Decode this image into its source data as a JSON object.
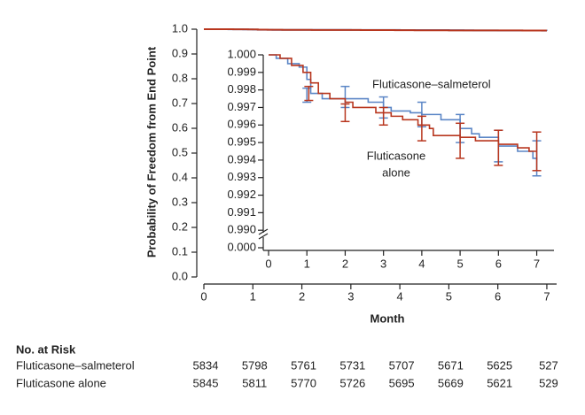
{
  "chart_data": {
    "type": "step",
    "ylabel": "Probability of Freedom from End Point",
    "xlabel": "Month",
    "xlim": [
      0,
      7.2
    ],
    "xticks": [
      0,
      1,
      2,
      3,
      4,
      5,
      6,
      7
    ],
    "ylim": [
      0,
      1
    ],
    "yticks": [
      {
        "value": 0,
        "label": "0.0"
      },
      0.1,
      0.2,
      0.3,
      0.4,
      0.5,
      0.6,
      0.7,
      0.8,
      0.9,
      {
        "value": 1,
        "label": "1.0"
      }
    ],
    "inset": {
      "xlim": [
        0,
        7.45
      ],
      "xticks": [
        0,
        1,
        2,
        3,
        4,
        5,
        6,
        7
      ],
      "ylim": [
        0.989,
        1.0
      ],
      "axis_break": true,
      "yticks": [
        {
          "value": 1.0,
          "label": "1.000"
        },
        {
          "value": 0.999,
          "label": "0.999"
        },
        {
          "value": 0.998,
          "label": "0.998"
        },
        {
          "value": 0.997,
          "label": "0.997"
        },
        {
          "value": 0.996,
          "label": "0.996"
        },
        {
          "value": 0.995,
          "label": "0.995"
        },
        {
          "value": 0.994,
          "label": "0.994"
        },
        {
          "value": 0.993,
          "label": "0.993"
        },
        {
          "value": 0.992,
          "label": "0.992"
        },
        {
          "value": 0.991,
          "label": "0.991"
        },
        {
          "value": 0.99,
          "label": "0.990"
        },
        {
          "value": 0,
          "label": "0.000"
        }
      ]
    },
    "annotations": [
      "Fluticasone–salmeterol",
      "Fluticasone",
      "alone"
    ],
    "series": [
      {
        "name": "Fluticasone–salmeterol",
        "color": "#5b86c6",
        "x": [
          0,
          0.2,
          0.5,
          0.8,
          1.0,
          1.1,
          1.4,
          2.0,
          2.6,
          3.0,
          3.2,
          3.7,
          4.0,
          4.5,
          5.0,
          5.3,
          5.5,
          6.0,
          6.5,
          6.9,
          7.0
        ],
        "values": [
          1.0,
          0.9998,
          0.9995,
          0.9993,
          0.9986,
          0.9978,
          0.9975,
          0.9975,
          0.9973,
          0.997,
          0.9968,
          0.9967,
          0.9966,
          0.9963,
          0.9958,
          0.9955,
          0.9953,
          0.9948,
          0.9945,
          0.9941,
          0.994
        ],
        "error_bars": {
          "x": [
            1.0,
            2.0,
            3.0,
            4.0,
            5.0,
            6.0,
            7.0
          ],
          "values": [
            0.9977,
            0.9976,
            0.997,
            0.9966,
            0.9958,
            0.9948,
            0.9941
          ],
          "errors": [
            0.0004,
            0.0006,
            0.0006,
            0.0007,
            0.0008,
            0.0009,
            0.001
          ]
        }
      },
      {
        "name": "Fluticasone alone",
        "color": "#b8361e",
        "x": [
          0,
          0.3,
          0.6,
          0.9,
          1.1,
          1.3,
          1.6,
          2.0,
          2.2,
          2.8,
          3.2,
          3.5,
          3.9,
          4.2,
          4.3,
          5.0,
          5.4,
          6.0,
          6.5,
          6.8,
          7.0
        ],
        "values": [
          1.0,
          0.9998,
          0.9994,
          0.999,
          0.9984,
          0.9978,
          0.9975,
          0.9973,
          0.997,
          0.9967,
          0.9965,
          0.9963,
          0.996,
          0.9958,
          0.9954,
          0.9953,
          0.9951,
          0.9949,
          0.9947,
          0.9945,
          0.9945
        ],
        "error_bars": {
          "x": [
            1.05,
            2.0,
            3.0,
            4.0,
            5.0,
            6.0,
            7.0
          ],
          "values": [
            0.9978,
            0.9967,
            0.9965,
            0.9958,
            0.9951,
            0.9947,
            0.9945
          ],
          "errors": [
            0.0004,
            0.0005,
            0.0005,
            0.0007,
            0.001,
            0.001,
            0.0011
          ]
        }
      }
    ]
  },
  "risk_table": {
    "title": "No. at Risk",
    "rows": [
      {
        "name": "Fluticasone–salmeterol",
        "values": [
          5834,
          5798,
          5761,
          5731,
          5707,
          5671,
          5625,
          527
        ]
      },
      {
        "name": "Fluticasone alone",
        "values": [
          5845,
          5811,
          5770,
          5726,
          5695,
          5669,
          5621,
          529
        ]
      }
    ]
  }
}
